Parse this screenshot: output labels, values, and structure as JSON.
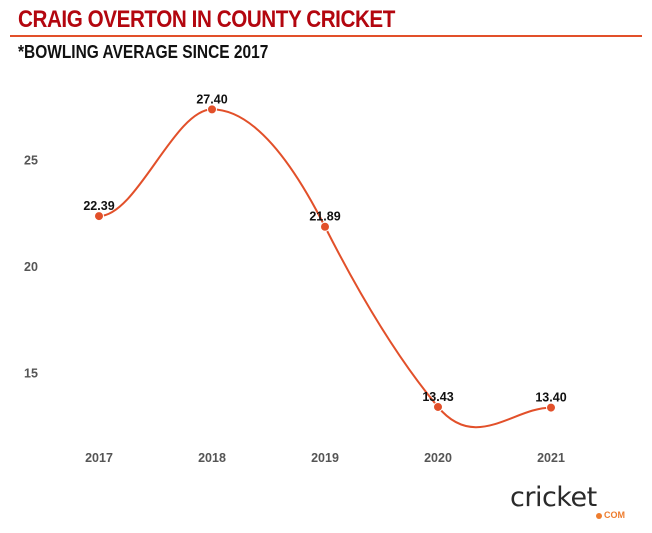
{
  "header": {
    "title": "CRAIG OVERTON IN COUNTY CRICKET",
    "subtitle": "*BOWLING AVERAGE SINCE 2017"
  },
  "brand": {
    "logo_text": "cricket",
    "logo_suffix": "COM",
    "accent_color": "#ee7d2f"
  },
  "colors": {
    "title": "#b3060f",
    "line": "#e2502a"
  },
  "chart_data": {
    "type": "line",
    "title": "CRAIG OVERTON IN COUNTY CRICKET",
    "subtitle": "*BOWLING AVERAGE SINCE 2017",
    "xlabel": "",
    "ylabel": "",
    "categories": [
      "2017",
      "2018",
      "2019",
      "2020",
      "2021"
    ],
    "series": [
      {
        "name": "Bowling average",
        "values": [
          22.39,
          27.4,
          21.89,
          13.43,
          13.4
        ],
        "labels": [
          "22.39",
          "27.40",
          "21.89",
          "13.43",
          "13.40"
        ]
      }
    ],
    "yticks": [
      15,
      20,
      25
    ],
    "ytick_labels": [
      "15",
      "20",
      "25"
    ],
    "ylim": [
      12,
      29
    ],
    "grid": false,
    "legend": "none",
    "smooth": true
  }
}
